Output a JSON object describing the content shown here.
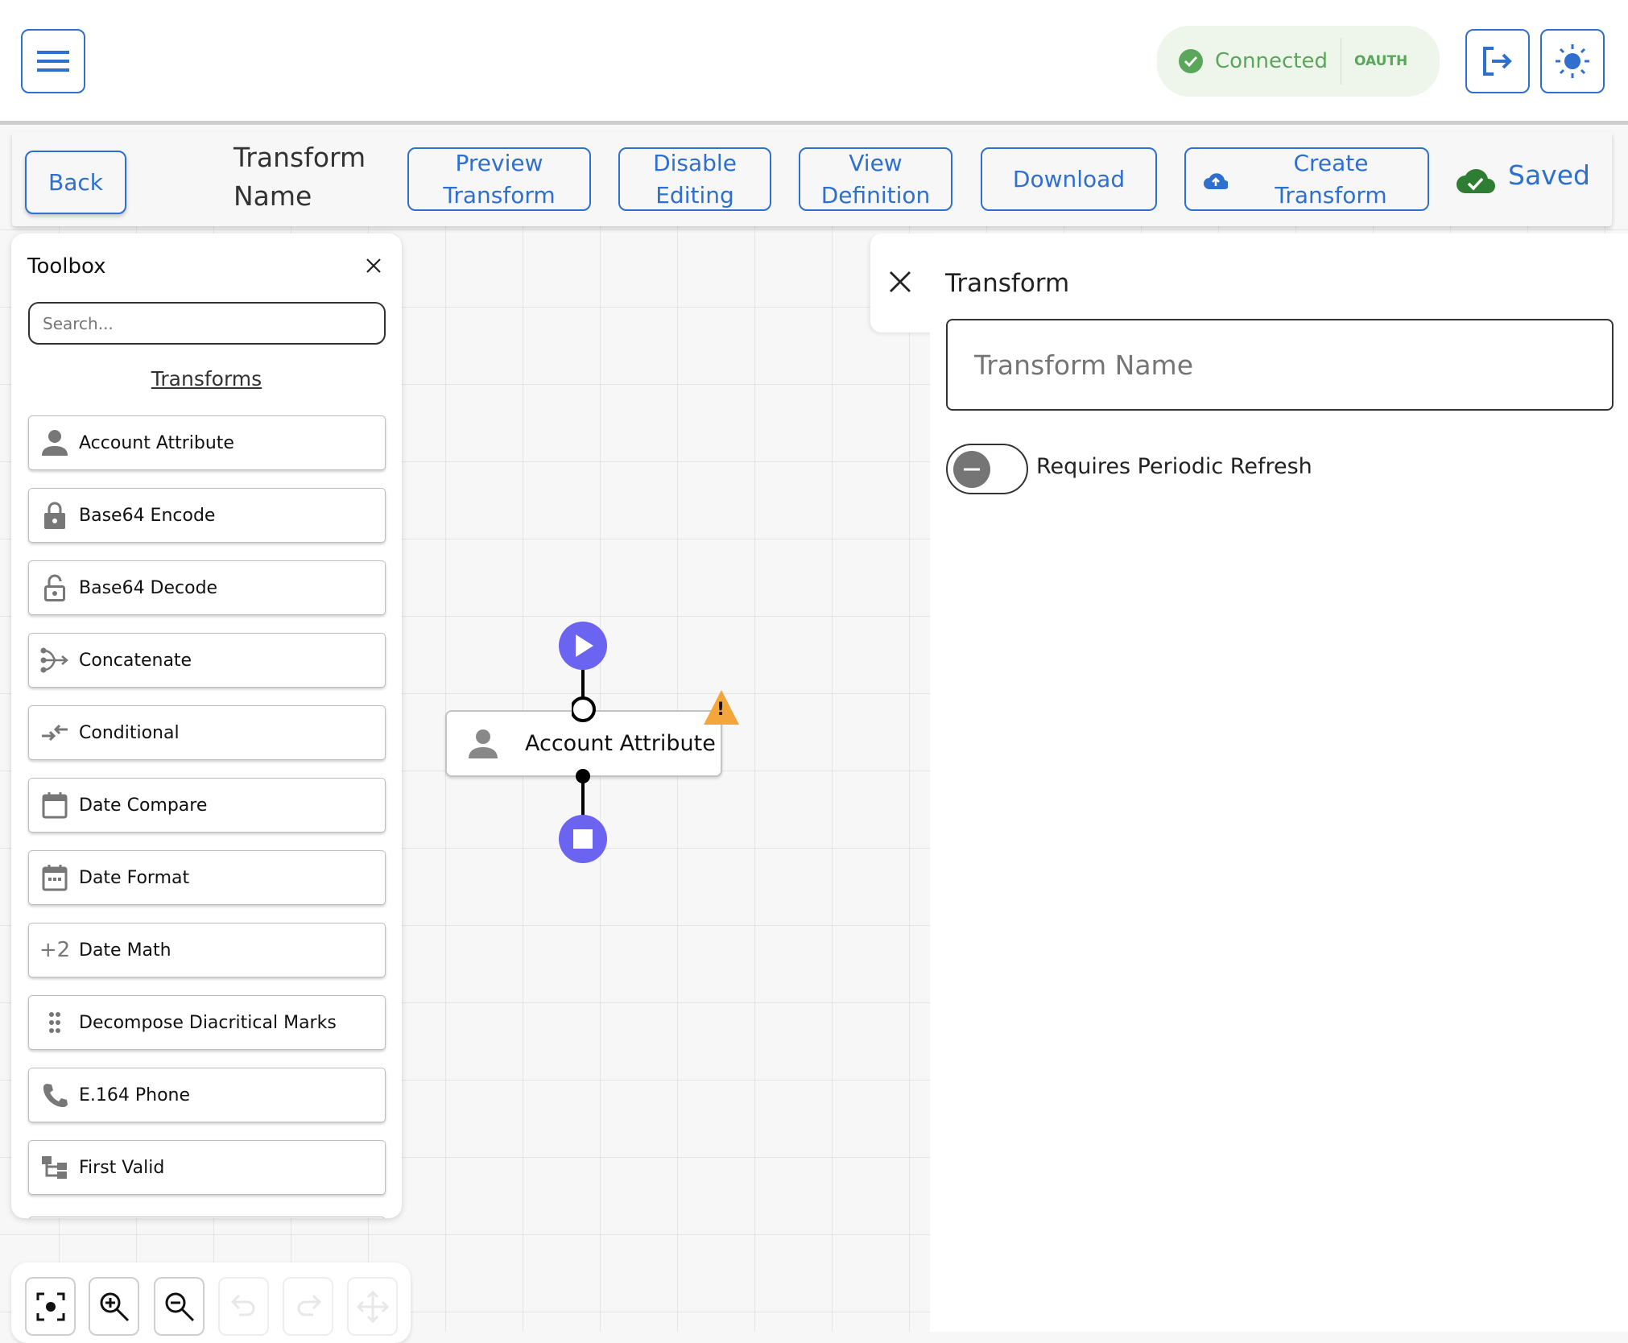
{
  "header": {
    "menu_icon": "hamburger-icon",
    "connection": {
      "status": "Connected",
      "auth": "OAUTH",
      "icon": "check-circle-icon"
    },
    "logout_icon": "logout-icon",
    "theme_icon": "sun-icon"
  },
  "toolbar": {
    "back": "Back",
    "title": "Transform Name",
    "preview": "Preview Transform",
    "disable": "Disable Editing",
    "view": "View Definition",
    "download": "Download",
    "create": "Create Transform",
    "saved": "Saved"
  },
  "toolbox": {
    "title": "Toolbox",
    "search_placeholder": "Search...",
    "section": "Transforms",
    "items": [
      {
        "label": "Account Attribute",
        "icon": "person-icon"
      },
      {
        "label": "Base64 Encode",
        "icon": "lock-icon"
      },
      {
        "label": "Base64 Decode",
        "icon": "lock-open-icon"
      },
      {
        "label": "Concatenate",
        "icon": "merge-icon"
      },
      {
        "label": "Conditional",
        "icon": "compare-arrows-icon"
      },
      {
        "label": "Date Compare",
        "icon": "calendar-icon"
      },
      {
        "label": "Date Format",
        "icon": "calendar-dots-icon"
      },
      {
        "label": "Date Math",
        "icon": "plus-two-icon"
      },
      {
        "label": "Decompose Diacritical Marks",
        "icon": "drag-dots-icon"
      },
      {
        "label": "E.164 Phone",
        "icon": "phone-icon"
      },
      {
        "label": "First Valid",
        "icon": "tree-icon"
      }
    ]
  },
  "canvas": {
    "node": {
      "label": "Account Attribute",
      "warning": "!"
    }
  },
  "panel": {
    "title": "Transform",
    "name_placeholder": "Transform Name",
    "toggle_label": "Requires Periodic Refresh",
    "toggle_on": false
  },
  "colors": {
    "accent": "#2f6fce",
    "node": "#6a64f1",
    "connected": "#5aa65a",
    "saved": "#2e7d32",
    "warning": "#f4a53c"
  }
}
